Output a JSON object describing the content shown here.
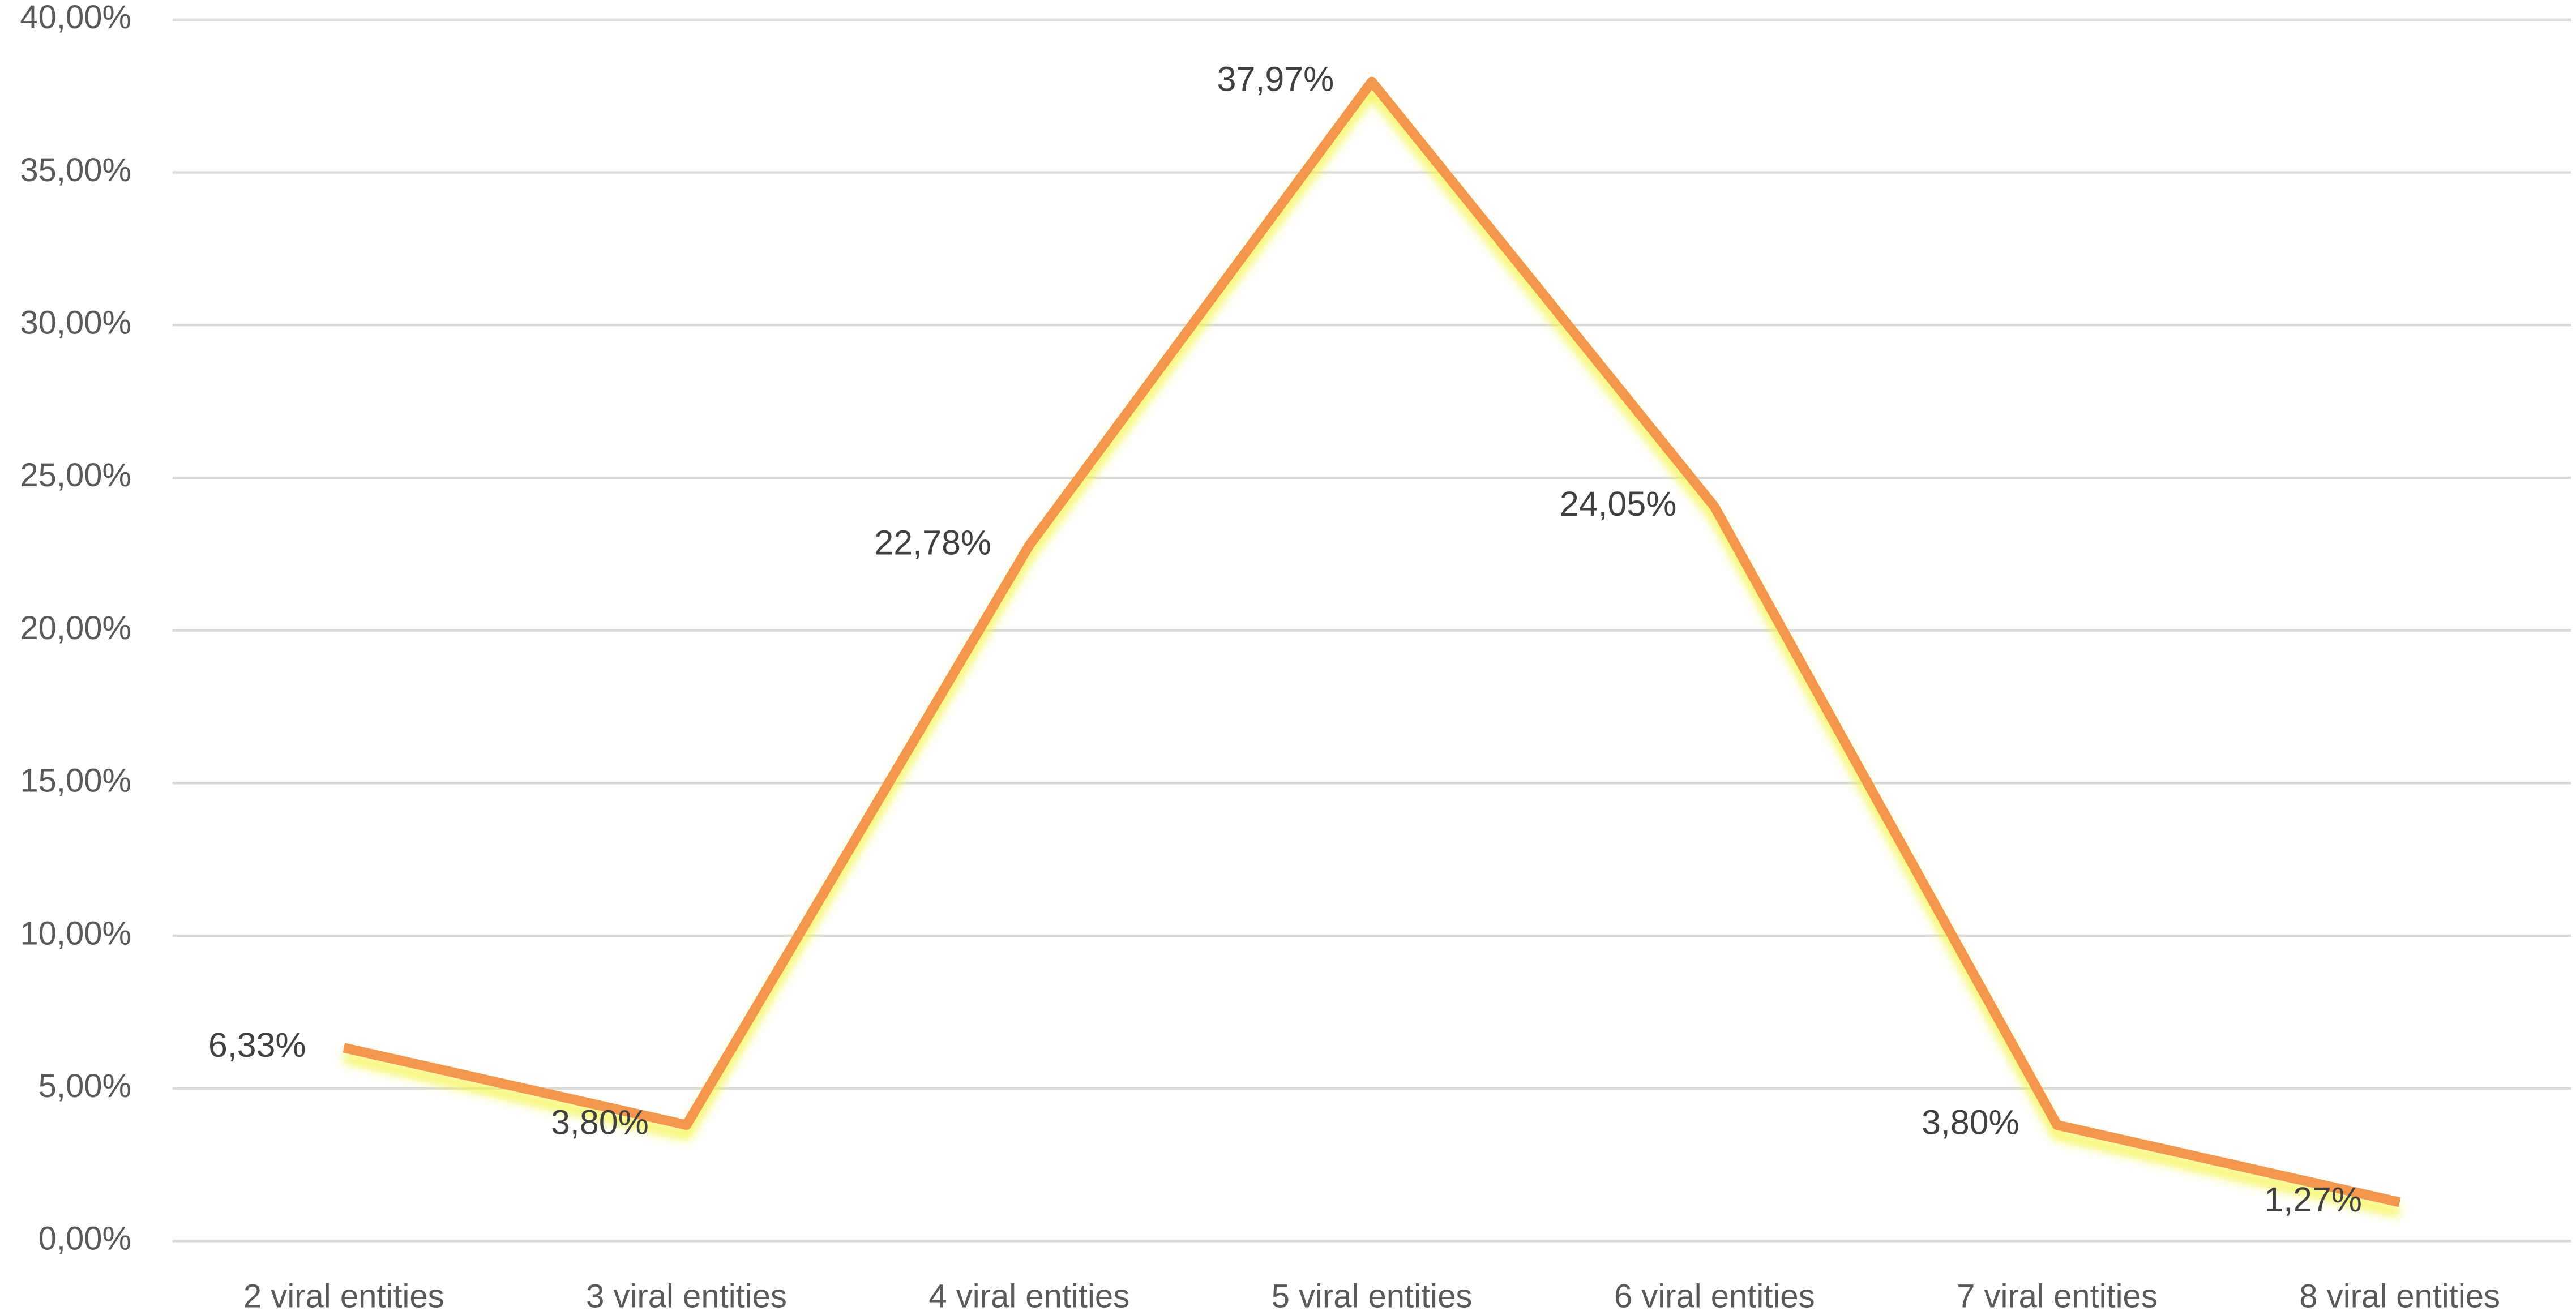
{
  "chart_data": {
    "type": "line",
    "categories": [
      "2 viral entities",
      "3 viral entities",
      "4 viral entities",
      "5 viral entities",
      "6 viral entities",
      "7 viral entities",
      "8 viral entities"
    ],
    "series": [
      {
        "color": "#f4964b",
        "values": [
          6.33,
          3.8,
          22.78,
          37.97,
          24.05,
          3.8,
          1.27
        ],
        "value_labels": [
          "6,33%",
          "3,80%",
          "22,78%",
          "37,97%",
          "24,05%",
          "3,80%",
          "1,27%"
        ]
      }
    ],
    "ylim": [
      0,
      40
    ],
    "yticks": [
      {
        "value": 0,
        "label": "0,00%"
      },
      {
        "value": 5,
        "label": "5,00%"
      },
      {
        "value": 10,
        "label": "10,00%"
      },
      {
        "value": 15,
        "label": "15,00%"
      },
      {
        "value": 20,
        "label": "20,00%"
      },
      {
        "value": 25,
        "label": "25,00%"
      },
      {
        "value": 30,
        "label": "30,00%"
      },
      {
        "value": 35,
        "label": "35,00%"
      },
      {
        "value": 40,
        "label": "40,00%"
      }
    ],
    "grid": true
  }
}
